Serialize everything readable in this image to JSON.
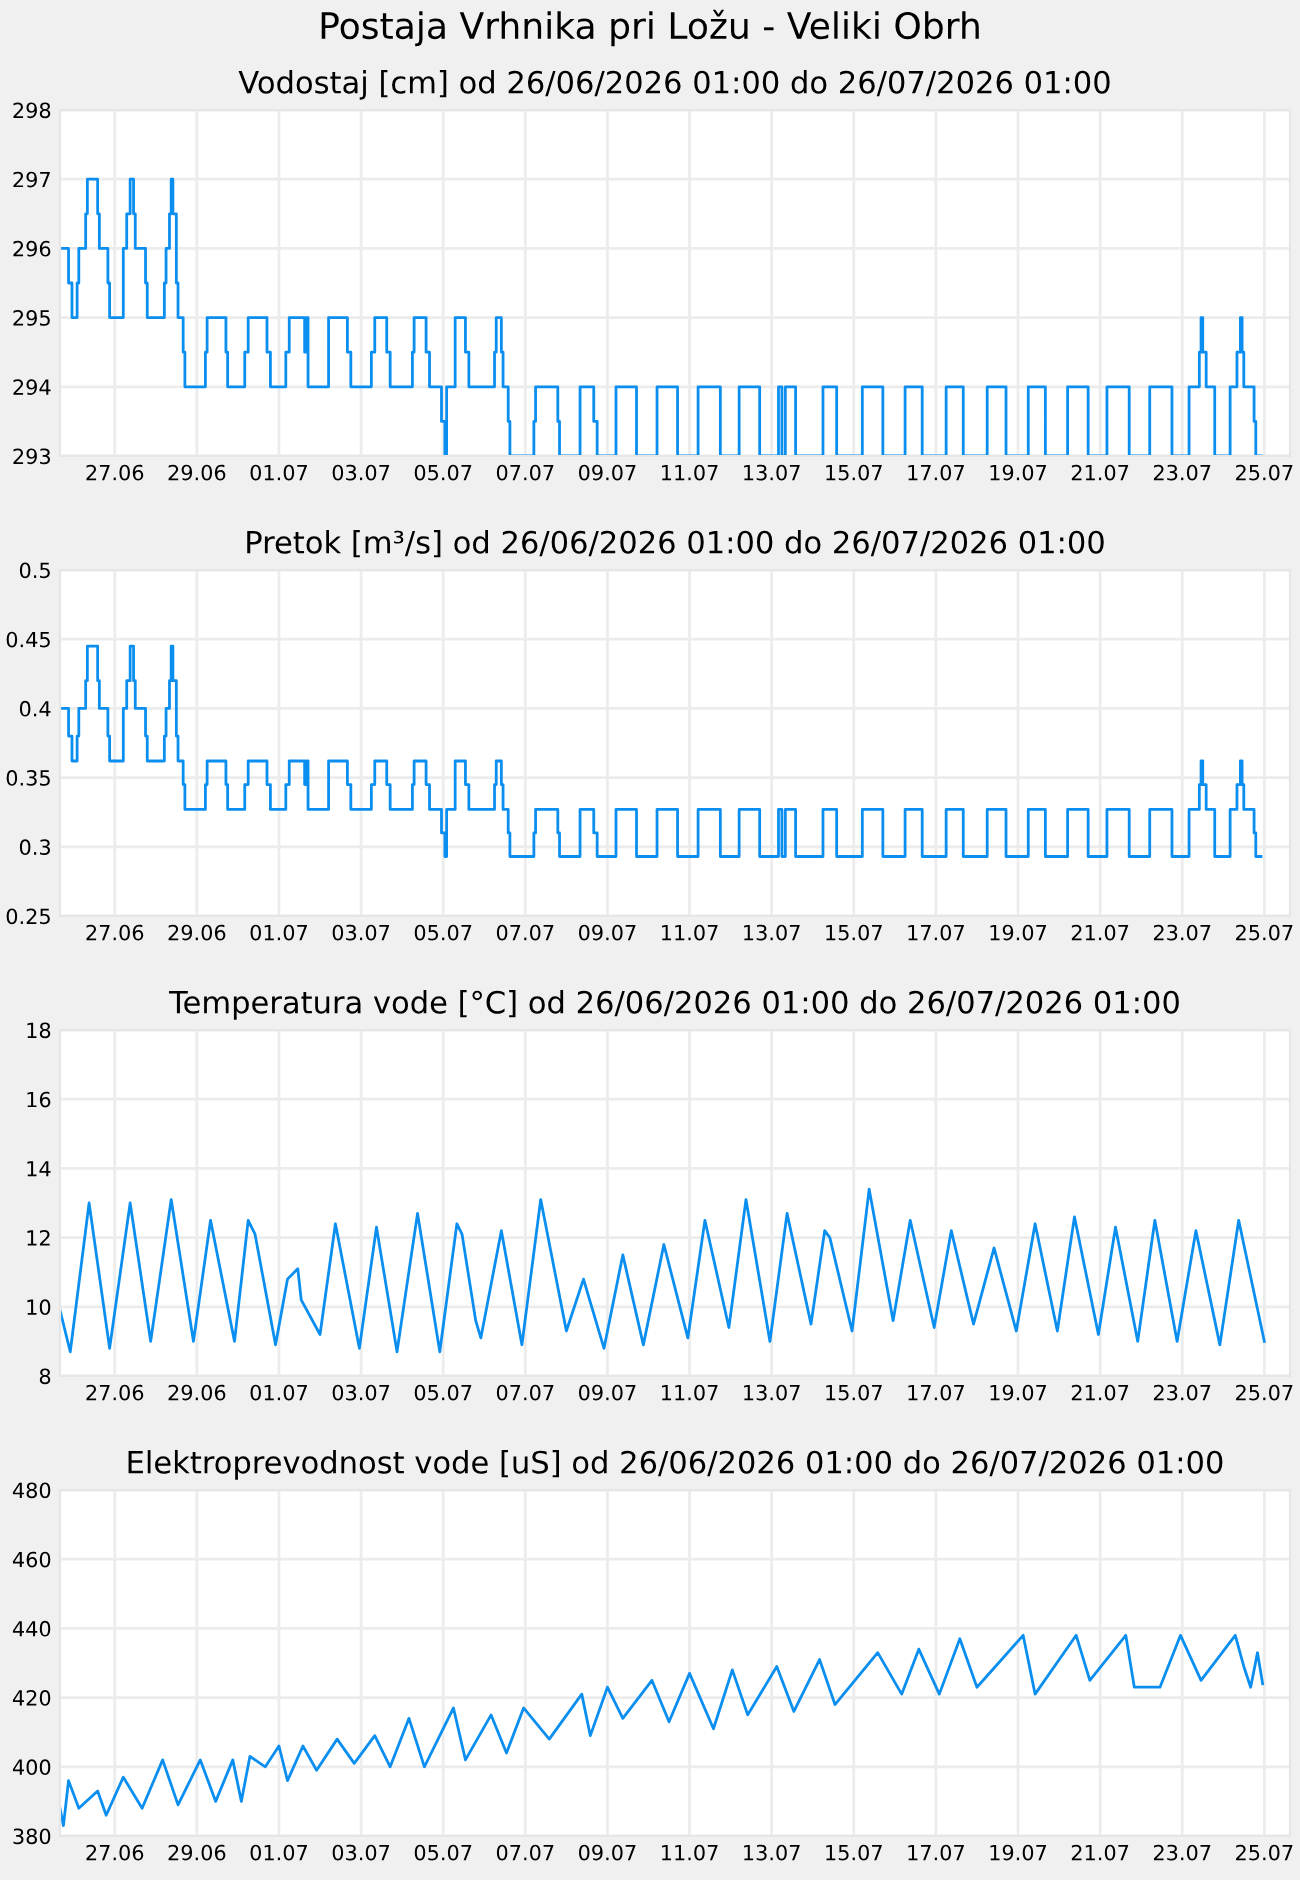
{
  "chart_data": [
    {
      "type": "step",
      "title": "Postaja Vrhnika pri Ložu - Veliki Obrh",
      "subtitle": "Vodostaj [cm] od 26/06/2026 01:00 do 26/07/2026 01:00",
      "grid": true,
      "xlim": [
        "2026-06-25T16:00",
        "2026-07-25T15:00"
      ],
      "xticks": [
        {
          "value": "2026-06-27",
          "label": "27.06"
        },
        {
          "value": "2026-06-29",
          "label": "29.06"
        },
        {
          "value": "2026-07-01",
          "label": "01.07"
        },
        {
          "value": "2026-07-03",
          "label": "03.07"
        },
        {
          "value": "2026-07-05",
          "label": "05.07"
        },
        {
          "value": "2026-07-07",
          "label": "07.07"
        },
        {
          "value": "2026-07-09",
          "label": "09.07"
        },
        {
          "value": "2026-07-11",
          "label": "11.07"
        },
        {
          "value": "2026-07-13",
          "label": "13.07"
        },
        {
          "value": "2026-07-15",
          "label": "15.07"
        },
        {
          "value": "2026-07-17",
          "label": "17.07"
        },
        {
          "value": "2026-07-19",
          "label": "19.07"
        },
        {
          "value": "2026-07-21",
          "label": "21.07"
        },
        {
          "value": "2026-07-23",
          "label": "23.07"
        },
        {
          "value": "2026-07-25",
          "label": "25.07"
        }
      ],
      "ylim": [
        293,
        298
      ],
      "yticks": [
        293,
        294,
        295,
        296,
        297,
        298
      ],
      "series": [
        {
          "color": "#0a8ef0",
          "x": [
            "2026-06-25T16:00",
            "2026-06-25T21:00",
            "2026-06-25T23:00",
            "2026-06-26T02:00",
            "2026-06-26T03:00",
            "2026-06-26T07:00",
            "2026-06-26T08:00",
            "2026-06-26T14:00",
            "2026-06-26T15:00",
            "2026-06-26T20:00",
            "2026-06-26T21:00",
            "2026-06-27T05:00",
            "2026-06-27T07:00",
            "2026-06-27T09:00",
            "2026-06-27T11:00",
            "2026-06-27T12:00",
            "2026-06-27T18:00",
            "2026-06-27T19:00",
            "2026-06-28T05:00",
            "2026-06-28T06:00",
            "2026-06-28T08:00",
            "2026-06-28T09:00",
            "2026-06-28T10:00",
            "2026-06-28T12:00",
            "2026-06-28T13:00",
            "2026-06-28T16:00",
            "2026-06-28T17:00",
            "2026-06-29T05:00",
            "2026-06-29T06:00",
            "2026-06-29T17:00",
            "2026-06-29T18:00",
            "2026-06-30T04:00",
            "2026-06-30T06:00",
            "2026-06-30T17:00",
            "2026-06-30T19:00",
            "2026-07-01T04:00",
            "2026-07-01T06:00",
            "2026-07-01T15:00",
            "2026-07-01T16:00",
            "2026-07-01T17:00",
            "2026-07-02T05:00",
            "2026-07-02T16:00",
            "2026-07-02T18:00",
            "2026-07-03T06:00",
            "2026-07-03T08:00",
            "2026-07-03T15:00",
            "2026-07-03T17:00",
            "2026-07-04T06:00",
            "2026-07-04T07:00",
            "2026-07-04T14:00",
            "2026-07-04T16:00",
            "2026-07-04T23:00",
            "2026-07-05T01:00",
            "2026-07-05T02:00",
            "2026-07-05T07:00",
            "2026-07-05T13:00",
            "2026-07-05T15:00",
            "2026-07-06T06:00",
            "2026-07-06T07:00",
            "2026-07-06T10:00",
            "2026-07-06T11:00",
            "2026-07-06T14:00",
            "2026-07-06T15:00",
            "2026-07-07T05:00",
            "2026-07-07T06:00",
            "2026-07-07T19:00",
            "2026-07-07T20:00",
            "2026-07-08T08:00",
            "2026-07-08T16:00",
            "2026-07-08T18:00",
            "2026-07-09T05:00",
            "2026-07-09T17:00",
            "2026-07-10T05:00",
            "2026-07-10T17:00",
            "2026-07-11T05:00",
            "2026-07-11T18:00",
            "2026-07-12T05:00",
            "2026-07-12T17:00",
            "2026-07-13T04:00",
            "2026-07-13T06:00",
            "2026-07-13T08:00",
            "2026-07-13T14:00",
            "2026-07-14T06:00",
            "2026-07-14T14:00",
            "2026-07-15T05:00",
            "2026-07-15T17:00",
            "2026-07-16T06:00",
            "2026-07-16T16:00",
            "2026-07-17T06:00",
            "2026-07-17T16:00",
            "2026-07-18T06:00",
            "2026-07-18T17:00",
            "2026-07-19T06:00",
            "2026-07-19T16:00",
            "2026-07-20T05:00",
            "2026-07-20T17:00",
            "2026-07-21T04:00",
            "2026-07-21T17:00",
            "2026-07-22T05:00",
            "2026-07-22T18:00",
            "2026-07-23T04:00",
            "2026-07-23T10:00",
            "2026-07-23T11:00",
            "2026-07-23T12:00",
            "2026-07-23T14:00",
            "2026-07-23T19:00",
            "2026-07-24T04:00",
            "2026-07-24T08:00",
            "2026-07-24T10:00",
            "2026-07-24T11:00",
            "2026-07-24T12:00",
            "2026-07-24T18:00",
            "2026-07-24T19:00",
            "2026-07-24T22:00"
          ],
          "values": [
            296,
            295.5,
            295,
            295.5,
            296,
            296.5,
            297,
            296.5,
            296,
            295.5,
            295,
            296,
            296.5,
            297,
            296.5,
            296,
            295.5,
            295,
            295.5,
            296,
            296.5,
            297,
            296.5,
            295.5,
            295,
            294.5,
            294,
            294.5,
            295,
            294.5,
            294,
            294.5,
            295,
            294.5,
            294,
            294.5,
            295,
            294.5,
            295,
            294,
            295,
            294.5,
            294,
            294.5,
            295,
            294.5,
            294,
            294.5,
            295,
            294.5,
            294,
            293.5,
            293,
            294,
            295,
            294.5,
            294,
            294.5,
            295,
            294.5,
            294,
            293.5,
            293,
            293.5,
            294,
            293.5,
            293,
            294,
            293.5,
            293,
            294,
            293,
            294,
            293,
            294,
            293,
            294,
            293,
            294,
            293,
            294,
            293,
            294,
            293,
            294,
            293,
            294,
            293,
            294,
            293,
            294,
            293,
            294,
            293,
            294,
            293,
            294,
            293,
            294,
            293,
            294,
            294.5,
            295,
            294.5,
            294,
            293,
            294,
            294.5,
            295,
            294.5,
            294,
            293.5,
            293,
            293
          ]
        }
      ]
    },
    {
      "type": "step",
      "title": "Pretok [m³/s] od 26/06/2026 01:00 do 26/07/2026 01:00",
      "grid": true,
      "xlim": [
        "2026-06-25T16:00",
        "2026-07-25T15:00"
      ],
      "xticks": [
        {
          "value": "2026-06-27",
          "label": "27.06"
        },
        {
          "value": "2026-06-29",
          "label": "29.06"
        },
        {
          "value": "2026-07-01",
          "label": "01.07"
        },
        {
          "value": "2026-07-03",
          "label": "03.07"
        },
        {
          "value": "2026-07-05",
          "label": "05.07"
        },
        {
          "value": "2026-07-07",
          "label": "07.07"
        },
        {
          "value": "2026-07-09",
          "label": "09.07"
        },
        {
          "value": "2026-07-11",
          "label": "11.07"
        },
        {
          "value": "2026-07-13",
          "label": "13.07"
        },
        {
          "value": "2026-07-15",
          "label": "15.07"
        },
        {
          "value": "2026-07-17",
          "label": "17.07"
        },
        {
          "value": "2026-07-19",
          "label": "19.07"
        },
        {
          "value": "2026-07-21",
          "label": "21.07"
        },
        {
          "value": "2026-07-23",
          "label": "23.07"
        },
        {
          "value": "2026-07-25",
          "label": "25.07"
        }
      ],
      "ylim": [
        0.25,
        0.5
      ],
      "yticks": [
        0.25,
        0.3,
        0.35,
        0.4,
        0.45,
        0.5
      ],
      "series": [
        {
          "color": "#0a8ef0",
          "x": [
            "2026-06-25T16:00",
            "2026-06-25T21:00",
            "2026-06-25T23:00",
            "2026-06-26T02:00",
            "2026-06-26T03:00",
            "2026-06-26T07:00",
            "2026-06-26T08:00",
            "2026-06-26T14:00",
            "2026-06-26T15:00",
            "2026-06-26T20:00",
            "2026-06-26T21:00",
            "2026-06-27T05:00",
            "2026-06-27T07:00",
            "2026-06-27T09:00",
            "2026-06-27T11:00",
            "2026-06-27T12:00",
            "2026-06-27T18:00",
            "2026-06-27T19:00",
            "2026-06-28T05:00",
            "2026-06-28T06:00",
            "2026-06-28T08:00",
            "2026-06-28T09:00",
            "2026-06-28T10:00",
            "2026-06-28T12:00",
            "2026-06-28T13:00",
            "2026-06-28T16:00",
            "2026-06-28T17:00",
            "2026-06-29T05:00",
            "2026-06-29T06:00",
            "2026-06-29T17:00",
            "2026-06-29T18:00",
            "2026-06-30T04:00",
            "2026-06-30T06:00",
            "2026-06-30T17:00",
            "2026-06-30T19:00",
            "2026-07-01T04:00",
            "2026-07-01T06:00",
            "2026-07-01T15:00",
            "2026-07-01T16:00",
            "2026-07-01T17:00",
            "2026-07-02T05:00",
            "2026-07-02T16:00",
            "2026-07-02T18:00",
            "2026-07-03T06:00",
            "2026-07-03T08:00",
            "2026-07-03T15:00",
            "2026-07-03T17:00",
            "2026-07-04T06:00",
            "2026-07-04T07:00",
            "2026-07-04T14:00",
            "2026-07-04T16:00",
            "2026-07-04T23:00",
            "2026-07-05T01:00",
            "2026-07-05T02:00",
            "2026-07-05T07:00",
            "2026-07-05T13:00",
            "2026-07-05T15:00",
            "2026-07-06T06:00",
            "2026-07-06T07:00",
            "2026-07-06T10:00",
            "2026-07-06T11:00",
            "2026-07-06T14:00",
            "2026-07-06T15:00",
            "2026-07-07T05:00",
            "2026-07-07T06:00",
            "2026-07-07T19:00",
            "2026-07-07T20:00",
            "2026-07-08T08:00",
            "2026-07-08T16:00",
            "2026-07-08T18:00",
            "2026-07-09T05:00",
            "2026-07-09T17:00",
            "2026-07-10T05:00",
            "2026-07-10T17:00",
            "2026-07-11T05:00",
            "2026-07-11T18:00",
            "2026-07-12T05:00",
            "2026-07-12T17:00",
            "2026-07-13T04:00",
            "2026-07-13T06:00",
            "2026-07-13T08:00",
            "2026-07-13T14:00",
            "2026-07-14T06:00",
            "2026-07-14T14:00",
            "2026-07-15T05:00",
            "2026-07-15T17:00",
            "2026-07-16T06:00",
            "2026-07-16T16:00",
            "2026-07-17T06:00",
            "2026-07-17T16:00",
            "2026-07-18T06:00",
            "2026-07-18T17:00",
            "2026-07-19T06:00",
            "2026-07-19T16:00",
            "2026-07-20T05:00",
            "2026-07-20T17:00",
            "2026-07-21T04:00",
            "2026-07-21T17:00",
            "2026-07-22T05:00",
            "2026-07-22T18:00",
            "2026-07-23T04:00",
            "2026-07-23T10:00",
            "2026-07-23T11:00",
            "2026-07-23T12:00",
            "2026-07-23T14:00",
            "2026-07-23T19:00",
            "2026-07-24T04:00",
            "2026-07-24T08:00",
            "2026-07-24T10:00",
            "2026-07-24T11:00",
            "2026-07-24T12:00",
            "2026-07-24T18:00",
            "2026-07-24T19:00",
            "2026-07-24T22:00"
          ],
          "values": [
            0.4,
            0.38,
            0.362,
            0.38,
            0.4,
            0.42,
            0.445,
            0.42,
            0.4,
            0.38,
            0.362,
            0.4,
            0.42,
            0.445,
            0.42,
            0.4,
            0.38,
            0.362,
            0.38,
            0.4,
            0.42,
            0.445,
            0.42,
            0.38,
            0.362,
            0.345,
            0.327,
            0.345,
            0.362,
            0.345,
            0.327,
            0.345,
            0.362,
            0.345,
            0.327,
            0.345,
            0.362,
            0.345,
            0.362,
            0.327,
            0.362,
            0.345,
            0.327,
            0.345,
            0.362,
            0.345,
            0.327,
            0.345,
            0.362,
            0.345,
            0.327,
            0.31,
            0.293,
            0.327,
            0.362,
            0.345,
            0.327,
            0.345,
            0.362,
            0.345,
            0.327,
            0.31,
            0.293,
            0.31,
            0.327,
            0.31,
            0.293,
            0.327,
            0.31,
            0.293,
            0.327,
            0.293,
            0.327,
            0.293,
            0.327,
            0.293,
            0.327,
            0.293,
            0.327,
            0.293,
            0.327,
            0.293,
            0.327,
            0.293,
            0.327,
            0.293,
            0.327,
            0.293,
            0.327,
            0.293,
            0.327,
            0.293,
            0.327,
            0.293,
            0.327,
            0.293,
            0.327,
            0.293,
            0.327,
            0.293,
            0.327,
            0.345,
            0.362,
            0.345,
            0.327,
            0.293,
            0.327,
            0.345,
            0.362,
            0.345,
            0.327,
            0.31,
            0.293,
            0.293
          ]
        }
      ]
    },
    {
      "type": "line",
      "title": "Temperatura vode [°C] od 26/06/2026 01:00 do 26/07/2026 01:00",
      "grid": true,
      "xlim": [
        "2026-06-25T16:00",
        "2026-07-25T15:00"
      ],
      "xticks": [
        {
          "value": "2026-06-27",
          "label": "27.06"
        },
        {
          "value": "2026-06-29",
          "label": "29.06"
        },
        {
          "value": "2026-07-01",
          "label": "01.07"
        },
        {
          "value": "2026-07-03",
          "label": "03.07"
        },
        {
          "value": "2026-07-05",
          "label": "05.07"
        },
        {
          "value": "2026-07-07",
          "label": "07.07"
        },
        {
          "value": "2026-07-09",
          "label": "09.07"
        },
        {
          "value": "2026-07-11",
          "label": "11.07"
        },
        {
          "value": "2026-07-13",
          "label": "13.07"
        },
        {
          "value": "2026-07-15",
          "label": "15.07"
        },
        {
          "value": "2026-07-17",
          "label": "17.07"
        },
        {
          "value": "2026-07-19",
          "label": "19.07"
        },
        {
          "value": "2026-07-21",
          "label": "21.07"
        },
        {
          "value": "2026-07-23",
          "label": "23.07"
        },
        {
          "value": "2026-07-25",
          "label": "25.07"
        }
      ],
      "ylim": [
        8,
        18
      ],
      "yticks": [
        8,
        10,
        12,
        14,
        16,
        18
      ],
      "series": [
        {
          "color": "#0a8ef0",
          "x": [
            "2026-06-25T16:00",
            "2026-06-25T22:00",
            "2026-06-26T09:00",
            "2026-06-26T21:00",
            "2026-06-27T09:00",
            "2026-06-27T21:00",
            "2026-06-28T09:00",
            "2026-06-28T22:00",
            "2026-06-29T08:00",
            "2026-06-29T22:00",
            "2026-06-30T06:00",
            "2026-06-30T10:00",
            "2026-06-30T22:00",
            "2026-07-01T05:00",
            "2026-07-01T11:00",
            "2026-07-01T13:00",
            "2026-07-02T00:00",
            "2026-07-02T09:00",
            "2026-07-02T23:00",
            "2026-07-03T09:00",
            "2026-07-03T21:00",
            "2026-07-04T09:00",
            "2026-07-04T22:00",
            "2026-07-05T08:00",
            "2026-07-05T11:00",
            "2026-07-05T19:00",
            "2026-07-05T22:00",
            "2026-07-06T10:00",
            "2026-07-06T22:00",
            "2026-07-07T09:00",
            "2026-07-08T00:00",
            "2026-07-08T10:00",
            "2026-07-08T22:00",
            "2026-07-09T09:00",
            "2026-07-09T21:00",
            "2026-07-10T09:00",
            "2026-07-10T23:00",
            "2026-07-11T09:00",
            "2026-07-11T23:00",
            "2026-07-12T09:00",
            "2026-07-12T23:00",
            "2026-07-13T09:00",
            "2026-07-13T23:00",
            "2026-07-14T07:00",
            "2026-07-14T10:00",
            "2026-07-14T23:00",
            "2026-07-15T09:00",
            "2026-07-15T23:00",
            "2026-07-16T09:00",
            "2026-07-16T23:00",
            "2026-07-17T09:00",
            "2026-07-17T22:00",
            "2026-07-18T10:00",
            "2026-07-18T23:00",
            "2026-07-19T10:00",
            "2026-07-19T23:00",
            "2026-07-20T09:00",
            "2026-07-20T23:00",
            "2026-07-21T09:00",
            "2026-07-21T22:00",
            "2026-07-22T08:00",
            "2026-07-22T21:00",
            "2026-07-23T08:00",
            "2026-07-23T22:00",
            "2026-07-24T09:00",
            "2026-07-25T00:00"
          ],
          "values": [
            9.9,
            8.7,
            13.0,
            8.8,
            13.0,
            9.0,
            13.1,
            9.0,
            12.5,
            9.0,
            12.5,
            12.1,
            8.9,
            10.8,
            11.1,
            10.2,
            9.2,
            12.4,
            8.8,
            12.3,
            8.7,
            12.7,
            8.7,
            12.4,
            12.1,
            9.6,
            9.1,
            12.2,
            8.9,
            13.1,
            9.3,
            10.8,
            8.8,
            11.5,
            8.9,
            11.8,
            9.1,
            12.5,
            9.4,
            13.1,
            9.0,
            12.7,
            9.5,
            12.2,
            12.0,
            9.3,
            13.4,
            9.6,
            12.5,
            9.4,
            12.2,
            9.5,
            11.7,
            9.3,
            12.4,
            9.3,
            12.6,
            9.2,
            12.3,
            9.0,
            12.5,
            9.0,
            12.2,
            8.9,
            12.5,
            9.0
          ]
        }
      ]
    },
    {
      "type": "line",
      "title": "Elektroprevodnost vode [uS] od 26/06/2026 01:00 do 26/07/2026 01:00",
      "grid": true,
      "xlim": [
        "2026-06-25T16:00",
        "2026-07-25T15:00"
      ],
      "xticks": [
        {
          "value": "2026-06-27",
          "label": "27.06"
        },
        {
          "value": "2026-06-29",
          "label": "29.06"
        },
        {
          "value": "2026-07-01",
          "label": "01.07"
        },
        {
          "value": "2026-07-03",
          "label": "03.07"
        },
        {
          "value": "2026-07-05",
          "label": "05.07"
        },
        {
          "value": "2026-07-07",
          "label": "07.07"
        },
        {
          "value": "2026-07-09",
          "label": "09.07"
        },
        {
          "value": "2026-07-11",
          "label": "11.07"
        },
        {
          "value": "2026-07-13",
          "label": "13.07"
        },
        {
          "value": "2026-07-15",
          "label": "15.07"
        },
        {
          "value": "2026-07-17",
          "label": "17.07"
        },
        {
          "value": "2026-07-19",
          "label": "19.07"
        },
        {
          "value": "2026-07-21",
          "label": "21.07"
        },
        {
          "value": "2026-07-23",
          "label": "23.07"
        },
        {
          "value": "2026-07-25",
          "label": "25.07"
        }
      ],
      "ylim": [
        380,
        480
      ],
      "yticks": [
        380,
        400,
        420,
        440,
        460,
        480
      ],
      "series": [
        {
          "color": "#0a8ef0",
          "x": [
            "2026-06-25T16:00",
            "2026-06-25T18:00",
            "2026-06-25T21:00",
            "2026-06-26T03:00",
            "2026-06-26T14:00",
            "2026-06-26T19:00",
            "2026-06-27T05:00",
            "2026-06-27T16:00",
            "2026-06-28T04:00",
            "2026-06-28T13:00",
            "2026-06-29T02:00",
            "2026-06-29T11:00",
            "2026-06-29T21:00",
            "2026-06-30T02:00",
            "2026-06-30T07:00",
            "2026-06-30T16:00",
            "2026-07-01T00:00",
            "2026-07-01T05:00",
            "2026-07-01T14:00",
            "2026-07-01T22:00",
            "2026-07-02T10:00",
            "2026-07-02T20:00",
            "2026-07-03T08:00",
            "2026-07-03T17:00",
            "2026-07-04T04:00",
            "2026-07-04T13:00",
            "2026-07-05T06:00",
            "2026-07-05T13:00",
            "2026-07-06T04:00",
            "2026-07-06T13:00",
            "2026-07-06T23:00",
            "2026-07-07T14:00",
            "2026-07-08T09:00",
            "2026-07-08T14:00",
            "2026-07-09T00:00",
            "2026-07-09T09:00",
            "2026-07-10T02:00",
            "2026-07-10T12:00",
            "2026-07-11T00:00",
            "2026-07-11T14:00",
            "2026-07-12T01:00",
            "2026-07-12T10:00",
            "2026-07-13T03:00",
            "2026-07-13T13:00",
            "2026-07-14T04:00",
            "2026-07-14T13:00",
            "2026-07-15T14:00",
            "2026-07-16T04:00",
            "2026-07-16T14:00",
            "2026-07-17T02:00",
            "2026-07-17T14:00",
            "2026-07-18T00:00",
            "2026-07-19T03:00",
            "2026-07-19T10:00",
            "2026-07-20T10:00",
            "2026-07-20T18:00",
            "2026-07-21T15:00",
            "2026-07-21T20:00",
            "2026-07-22T11:00",
            "2026-07-22T23:00",
            "2026-07-23T11:00",
            "2026-07-24T07:00",
            "2026-07-24T12:00",
            "2026-07-24T16:00",
            "2026-07-24T20:00",
            "2026-07-24T23:00"
          ],
          "values": [
            388,
            383,
            396,
            388,
            393,
            386,
            397,
            388,
            402,
            389,
            402,
            390,
            402,
            390,
            403,
            400,
            406,
            396,
            406,
            399,
            408,
            401,
            409,
            400,
            414,
            400,
            417,
            402,
            415,
            404,
            417,
            408,
            421,
            409,
            423,
            414,
            425,
            413,
            427,
            411,
            428,
            415,
            429,
            416,
            431,
            418,
            433,
            421,
            434,
            421,
            437,
            423,
            438,
            421,
            438,
            425,
            438,
            423,
            423,
            438,
            425,
            438,
            429,
            423,
            433,
            424
          ]
        }
      ]
    }
  ]
}
